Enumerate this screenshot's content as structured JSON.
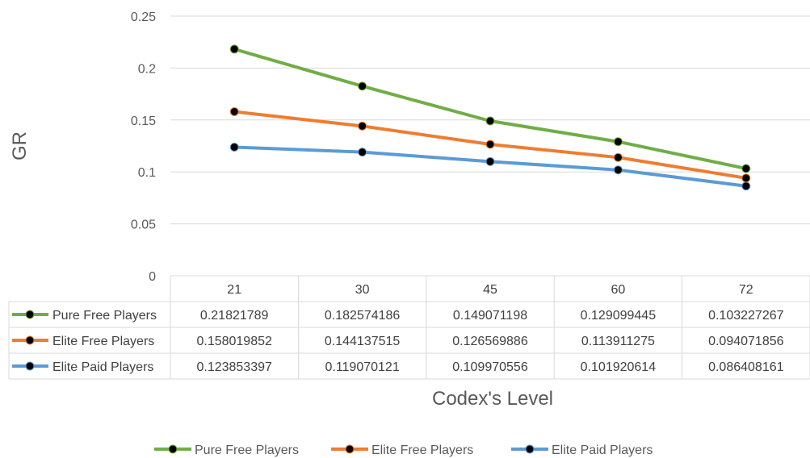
{
  "chart_data": {
    "type": "line",
    "ylabel": "GR",
    "xlabel": "Codex's Level",
    "categories": [
      "21",
      "30",
      "45",
      "60",
      "72"
    ],
    "ylim": [
      0,
      0.25
    ],
    "yticks": [
      "0",
      "0.05",
      "0.1",
      "0.15",
      "0.2",
      "0.25"
    ],
    "grid": true,
    "legend": "bottom",
    "data_table": true,
    "series": [
      {
        "name": "Pure Free Players",
        "color": "#70AD47",
        "values": [
          0.21821789,
          0.182574186,
          0.149071198,
          0.129099445,
          0.103227267
        ],
        "labels": [
          "0.21821789",
          "0.182574186",
          "0.149071198",
          "0.129099445",
          "0.103227267"
        ]
      },
      {
        "name": "Elite Free Players",
        "color": "#ED7D31",
        "values": [
          0.158019852,
          0.144137515,
          0.126569886,
          0.113911275,
          0.094071856
        ],
        "labels": [
          "0.158019852",
          "0.144137515",
          "0.126569886",
          "0.113911275",
          "0.094071856"
        ]
      },
      {
        "name": "Elite Paid Players",
        "color": "#5B9BD5",
        "values": [
          0.123853397,
          0.119070121,
          0.109970556,
          0.101920614,
          0.086408161
        ],
        "labels": [
          "0.123853397",
          "0.119070121",
          "0.109970556",
          "0.101920614",
          "0.086408161"
        ]
      }
    ],
    "marker_color": "#000000"
  }
}
